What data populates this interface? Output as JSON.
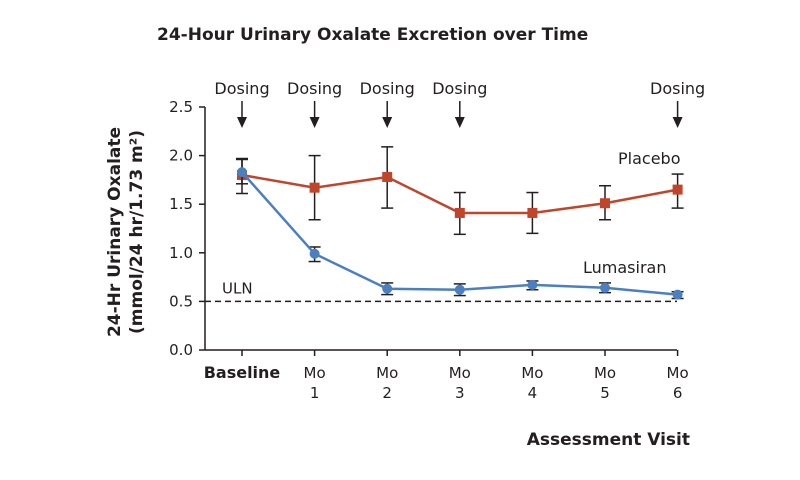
{
  "chart_data": {
    "type": "line",
    "title": "24-Hour Urinary Oxalate Excretion over Time",
    "xlabel": "Assessment Visit",
    "ylabel": "24-Hr Urinary Oxalate",
    "ylabel_units": "(mmol/24 hr/1.73 m²)",
    "ylim": [
      0,
      2.5
    ],
    "yticks": [
      "0.0",
      "0.5",
      "1.0",
      "1.5",
      "2.0",
      "2.5"
    ],
    "categories": [
      {
        "line1": "Baseline",
        "line2": "",
        "bold": true
      },
      {
        "line1": "Mo",
        "line2": "1",
        "bold": false
      },
      {
        "line1": "Mo",
        "line2": "2",
        "bold": false
      },
      {
        "line1": "Mo",
        "line2": "3",
        "bold": false
      },
      {
        "line1": "Mo",
        "line2": "4",
        "bold": false
      },
      {
        "line1": "Mo",
        "line2": "5",
        "bold": false
      },
      {
        "line1": "Mo",
        "line2": "6",
        "bold": false
      }
    ],
    "series": [
      {
        "name": "Placebo",
        "color": "#c0452b",
        "marker": "square",
        "values": [
          1.8,
          1.67,
          1.78,
          1.41,
          1.41,
          1.51,
          1.65
        ],
        "error_low": [
          1.61,
          1.34,
          1.46,
          1.19,
          1.2,
          1.34,
          1.46
        ],
        "error_high": [
          1.97,
          2.0,
          2.09,
          1.62,
          1.62,
          1.69,
          1.81
        ]
      },
      {
        "name": "Lumasiran",
        "color": "#4a7fc1",
        "marker": "circle",
        "values": [
          1.83,
          0.99,
          0.63,
          0.62,
          0.67,
          0.64,
          0.57
        ],
        "error_low": [
          1.71,
          0.91,
          0.57,
          0.56,
          0.62,
          0.59,
          0.53
        ],
        "error_high": [
          1.96,
          1.06,
          0.69,
          0.68,
          0.71,
          0.69,
          0.6
        ]
      }
    ],
    "reference_line": {
      "label": "ULN",
      "value": 0.5,
      "style": "dashed"
    },
    "dosing": {
      "label": "Dosing",
      "category_indices": [
        0,
        1,
        2,
        3,
        6
      ]
    },
    "grid": false
  }
}
